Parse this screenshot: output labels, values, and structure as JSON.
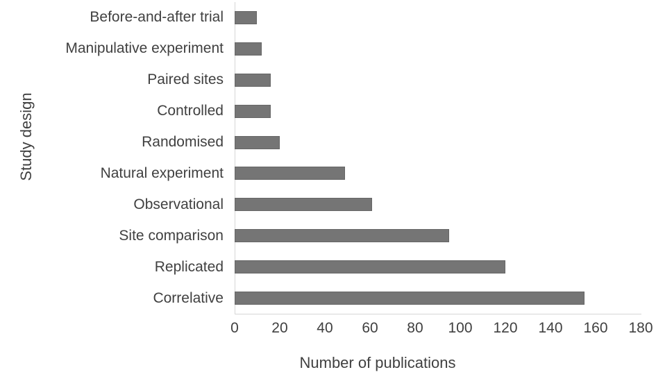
{
  "chart_data": {
    "type": "bar",
    "orientation": "horizontal",
    "title": "",
    "xlabel": "Number of publications",
    "ylabel": "Study design",
    "categories": [
      "Before-and-after trial",
      "Manipulative experiment",
      "Paired sites",
      "Controlled",
      "Randomised",
      "Natural experiment",
      "Observational",
      "Site comparison",
      "Replicated",
      "Correlative"
    ],
    "values": [
      10,
      12,
      16,
      16,
      20,
      49,
      61,
      95,
      120,
      155
    ],
    "xlim": [
      0,
      180
    ],
    "xticks": [
      0,
      20,
      40,
      60,
      80,
      100,
      120,
      140,
      160,
      180
    ],
    "grid": false,
    "legend": false,
    "bar_color": "#757575",
    "bar_border_color": "#666666",
    "axis_line_color": "#d6d6d6",
    "text_color": "#404040",
    "background_color": "#ffffff"
  }
}
